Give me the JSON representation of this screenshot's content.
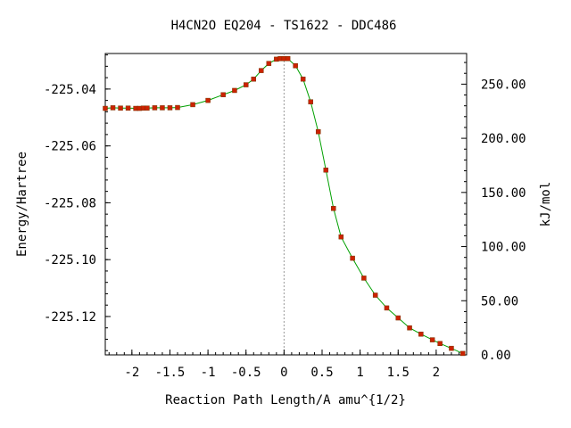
{
  "chart_data": {
    "type": "line",
    "title": "H4CN2O   EQ204 - TS1622 - DDC486",
    "xlabel": "Reaction Path Length/A amu^{1/2}",
    "ylabel": "Energy/Hartree",
    "y2label": "kJ/mol",
    "xlim": [
      -2.35,
      2.4
    ],
    "ylim": [
      -225.1335,
      -225.0275
    ],
    "y2lim": [
      0,
      278.3
    ],
    "x_ticks": [
      -2,
      -1.5,
      -1,
      -0.5,
      0,
      0.5,
      1,
      1.5,
      2
    ],
    "x_tick_labels": [
      "-2",
      "-1.5",
      "-1",
      "-0.5",
      "0",
      "0.5",
      "1",
      "1.5",
      "2"
    ],
    "y_ticks": [
      -225.04,
      -225.06,
      -225.08,
      -225.1,
      -225.12
    ],
    "y_tick_labels": [
      "-225.04",
      "-225.06",
      "-225.08",
      "-225.10",
      "-225.12"
    ],
    "y2_ticks": [
      0,
      50,
      100,
      150,
      200,
      250
    ],
    "y2_tick_labels": [
      "0.00",
      "50.00",
      "100.00",
      "150.00",
      "200.00",
      "250.00"
    ],
    "ts_line_x": 0,
    "line_color": "#00a000",
    "marker_color": "#cc2200",
    "series": [
      {
        "x": [
          -2.35,
          -2.25,
          -2.15,
          -2.05,
          -1.95,
          -1.9,
          -1.85,
          -1.8,
          -1.7,
          -1.6,
          -1.5,
          -1.4,
          -1.2,
          -1.0,
          -0.8,
          -0.65,
          -0.5,
          -0.4,
          -0.3,
          -0.2,
          -0.1,
          -0.05,
          0.0,
          0.05,
          0.15,
          0.25,
          0.35,
          0.45,
          0.55,
          0.65,
          0.75,
          0.9,
          1.05,
          1.2,
          1.35,
          1.5,
          1.65,
          1.8,
          1.95,
          2.05,
          2.2,
          2.35
        ],
        "y": [
          -225.0468,
          -225.0466,
          -225.0467,
          -225.0467,
          -225.0468,
          -225.0468,
          -225.0467,
          -225.0467,
          -225.0466,
          -225.0466,
          -225.0466,
          -225.0465,
          -225.0455,
          -225.044,
          -225.042,
          -225.0405,
          -225.0385,
          -225.0365,
          -225.0335,
          -225.031,
          -225.0295,
          -225.0293,
          -225.0293,
          -225.0293,
          -225.0318,
          -225.0365,
          -225.0445,
          -225.055,
          -225.0685,
          -225.082,
          -225.092,
          -225.0995,
          -225.1065,
          -225.1125,
          -225.117,
          -225.1205,
          -225.124,
          -225.1262,
          -225.1282,
          -225.1295,
          -225.1312,
          -225.133
        ]
      }
    ]
  }
}
